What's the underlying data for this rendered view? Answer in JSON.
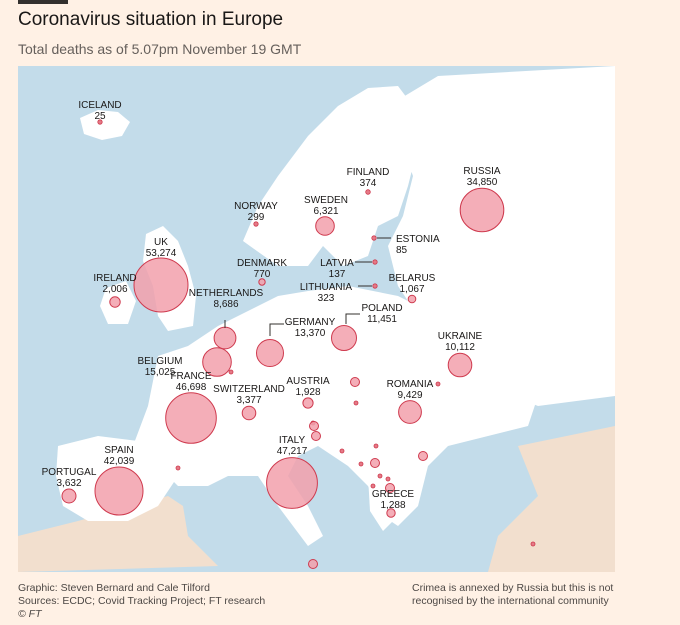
{
  "header": {
    "title": "Coronavirus situation in Europe",
    "subtitle": "Total deaths as of 5.07pm November 19 GMT"
  },
  "footer": {
    "credit": "Graphic: Steven Bernard and Cale Tilford",
    "sources": "Sources: ECDC; Covid Tracking Project; FT research",
    "copyright": "© FT",
    "note_line1": "Crimea is annexed by Russia but this is not",
    "note_line2": "recognised by the international community"
  },
  "colors": {
    "background": "#fff1e5",
    "sea": "#c3dcea",
    "land": "#ffffff",
    "land_outside": "#f2dfce",
    "bubble_fill": "#f2a0ab",
    "bubble_stroke": "#cf3a4e"
  },
  "countries": [
    {
      "name": "ICELAND",
      "deaths": "25",
      "value": 25
    },
    {
      "name": "FINLAND",
      "deaths": "374",
      "value": 374
    },
    {
      "name": "RUSSIA",
      "deaths": "34,850",
      "value": 34850
    },
    {
      "name": "NORWAY",
      "deaths": "299",
      "value": 299
    },
    {
      "name": "SWEDEN",
      "deaths": "6,321",
      "value": 6321
    },
    {
      "name": "ESTONIA",
      "deaths": "85",
      "value": 85
    },
    {
      "name": "UK",
      "deaths": "53,274",
      "value": 53274
    },
    {
      "name": "DENMARK",
      "deaths": "770",
      "value": 770
    },
    {
      "name": "LATVIA",
      "deaths": "137",
      "value": 137
    },
    {
      "name": "IRELAND",
      "deaths": "2,006",
      "value": 2006
    },
    {
      "name": "LITHUANIA",
      "deaths": "323",
      "value": 323
    },
    {
      "name": "BELARUS",
      "deaths": "1,067",
      "value": 1067
    },
    {
      "name": "NETHERLANDS",
      "deaths": "8,686",
      "value": 8686
    },
    {
      "name": "POLAND",
      "deaths": "11,451",
      "value": 11451
    },
    {
      "name": "GERMANY",
      "deaths": "13,370",
      "value": 13370
    },
    {
      "name": "UKRAINE",
      "deaths": "10,112",
      "value": 10112
    },
    {
      "name": "BELGIUM",
      "deaths": "15,025",
      "value": 15025
    },
    {
      "name": "FRANCE",
      "deaths": "46,698",
      "value": 46698
    },
    {
      "name": "AUSTRIA",
      "deaths": "1,928",
      "value": 1928
    },
    {
      "name": "ROMANIA",
      "deaths": "9,429",
      "value": 9429
    },
    {
      "name": "SWITZERLAND",
      "deaths": "3,377",
      "value": 3377
    },
    {
      "name": "SPAIN",
      "deaths": "42,039",
      "value": 42039
    },
    {
      "name": "ITALY",
      "deaths": "47,217",
      "value": 47217
    },
    {
      "name": "PORTUGAL",
      "deaths": "3,632",
      "value": 3632
    },
    {
      "name": "GREECE",
      "deaths": "1,288",
      "value": 1288
    }
  ]
}
